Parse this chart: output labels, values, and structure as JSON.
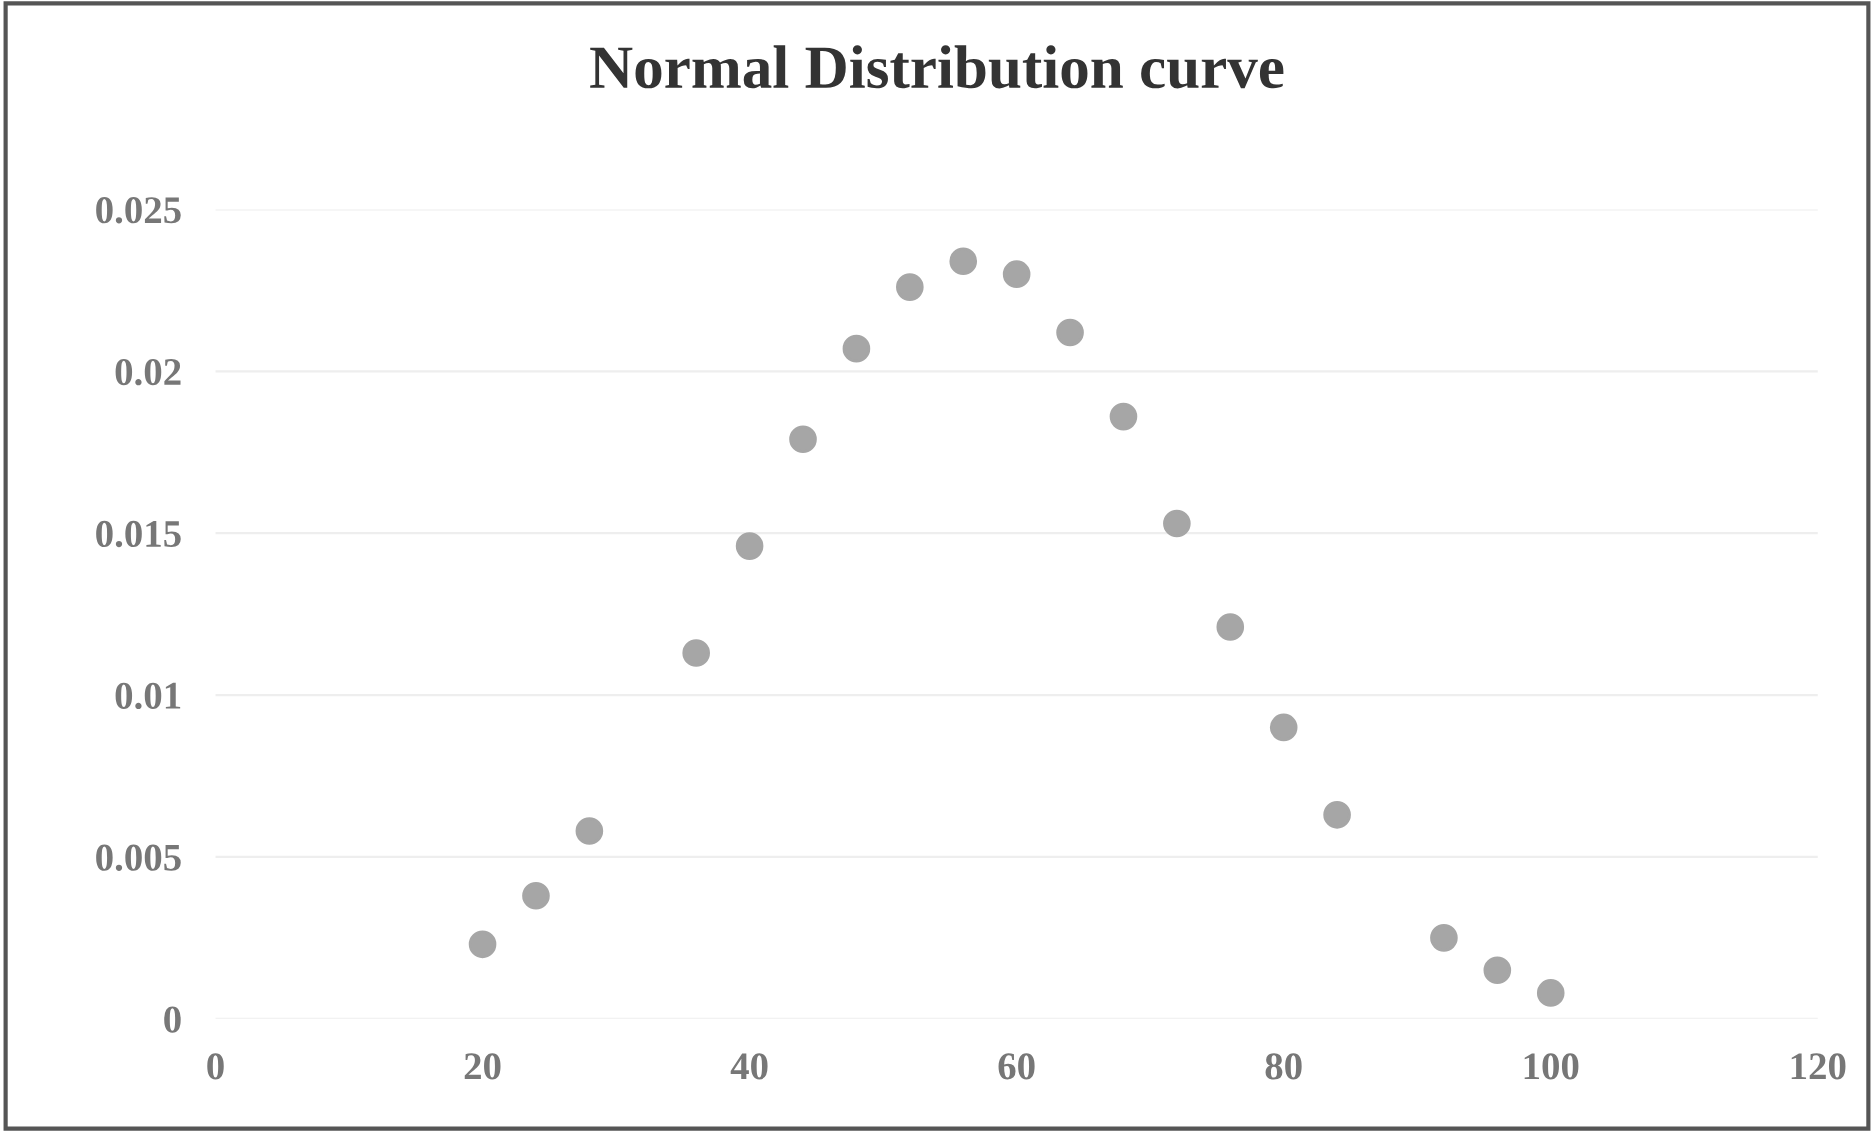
{
  "chart_data": {
    "type": "scatter",
    "title": "Normal Distribution curve",
    "x": [
      20,
      24,
      28,
      36,
      40,
      44,
      48,
      52,
      56,
      60,
      64,
      68,
      72,
      76,
      80,
      84,
      92,
      96,
      100
    ],
    "series": [
      {
        "color": "#a6a6a6",
        "values": [
          0.0023,
          0.0038,
          0.0058,
          0.0113,
          0.0146,
          0.0179,
          0.0207,
          0.0226,
          0.0234,
          0.023,
          0.0212,
          0.0186,
          0.0153,
          0.0121,
          0.009,
          0.0063,
          0.0025,
          0.0015,
          0.0008
        ]
      }
    ],
    "xlim": [
      0,
      120
    ],
    "xticks": [
      0,
      20,
      40,
      60,
      80,
      100,
      120
    ],
    "ylim": [
      0,
      0.025
    ],
    "yticks": [
      0,
      0.005,
      0.01,
      0.015,
      0.02,
      0.025
    ],
    "grid": "y",
    "marker": "circle",
    "legend": false
  }
}
